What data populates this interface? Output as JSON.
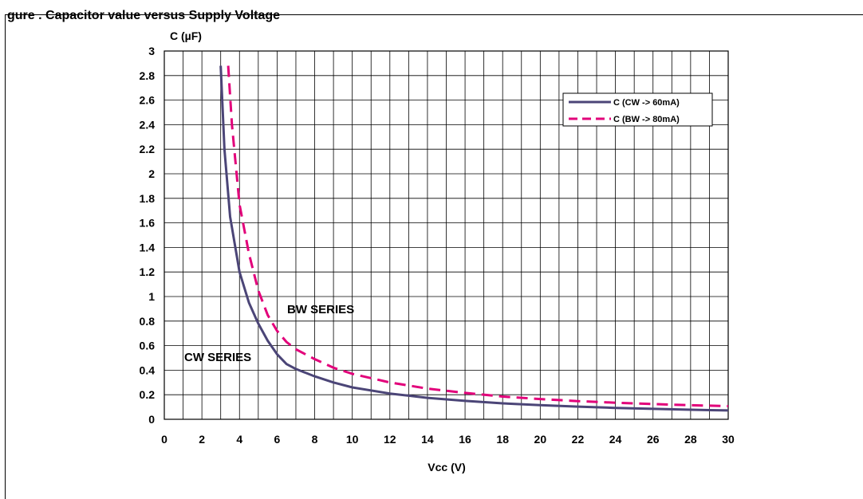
{
  "figure": {
    "title": "gure . Capacitor value versus Supply Voltage"
  },
  "chart_data": {
    "type": "line",
    "ylabel": "C (µF)",
    "xlabel": "Vcc (V)",
    "xlim": [
      0,
      30
    ],
    "ylim": [
      0,
      3
    ],
    "x_ticks": [
      "0",
      "2",
      "4",
      "6",
      "8",
      "10",
      "12",
      "14",
      "16",
      "18",
      "20",
      "22",
      "24",
      "26",
      "28",
      "30"
    ],
    "y_ticks": [
      "0",
      "0.2",
      "0.4",
      "0.6",
      "0.8",
      "1",
      "1.2",
      "1.4",
      "1.6",
      "1.8",
      "2",
      "2.2",
      "2.4",
      "2.6",
      "2.8",
      "3"
    ],
    "grid": true,
    "legend_position": "top-right",
    "annotations": [
      "BW SERIES",
      "CW SERIES"
    ],
    "series": [
      {
        "name": "C (CW -> 60mA)",
        "color": "#4b4577",
        "style": "solid",
        "points": [
          [
            3.0,
            2.88
          ],
          [
            3.2,
            2.2
          ],
          [
            3.5,
            1.65
          ],
          [
            4.0,
            1.2
          ],
          [
            4.5,
            0.95
          ],
          [
            5.0,
            0.78
          ],
          [
            5.5,
            0.64
          ],
          [
            6.0,
            0.53
          ],
          [
            6.5,
            0.45
          ],
          [
            7.0,
            0.41
          ],
          [
            8.0,
            0.35
          ],
          [
            9.0,
            0.3
          ],
          [
            10.0,
            0.26
          ],
          [
            12.0,
            0.21
          ],
          [
            14.0,
            0.175
          ],
          [
            16.0,
            0.15
          ],
          [
            18.0,
            0.13
          ],
          [
            20.0,
            0.115
          ],
          [
            22.0,
            0.103
          ],
          [
            24.0,
            0.093
          ],
          [
            26.0,
            0.085
          ],
          [
            28.0,
            0.078
          ],
          [
            30.0,
            0.072
          ]
        ]
      },
      {
        "name": "C (BW -> 80mA)",
        "color": "#e2007a",
        "style": "dashed",
        "points": [
          [
            3.4,
            2.88
          ],
          [
            3.6,
            2.4
          ],
          [
            4.0,
            1.75
          ],
          [
            4.5,
            1.35
          ],
          [
            5.0,
            1.05
          ],
          [
            5.5,
            0.85
          ],
          [
            6.0,
            0.72
          ],
          [
            6.5,
            0.63
          ],
          [
            7.0,
            0.57
          ],
          [
            8.0,
            0.49
          ],
          [
            9.0,
            0.42
          ],
          [
            10.0,
            0.37
          ],
          [
            12.0,
            0.3
          ],
          [
            14.0,
            0.25
          ],
          [
            16.0,
            0.215
          ],
          [
            18.0,
            0.185
          ],
          [
            20.0,
            0.165
          ],
          [
            22.0,
            0.148
          ],
          [
            24.0,
            0.135
          ],
          [
            26.0,
            0.124
          ],
          [
            28.0,
            0.115
          ],
          [
            30.0,
            0.107
          ]
        ]
      }
    ]
  }
}
